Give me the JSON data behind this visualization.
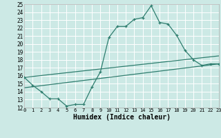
{
  "xlabel": "Humidex (Indice chaleur)",
  "background_color": "#cce9e5",
  "grid_color": "#ffffff",
  "line_color": "#2e7d6e",
  "xlim": [
    0,
    23
  ],
  "ylim": [
    12,
    25
  ],
  "xticks": [
    0,
    1,
    2,
    3,
    4,
    5,
    6,
    7,
    8,
    9,
    10,
    11,
    12,
    13,
    14,
    15,
    16,
    17,
    18,
    19,
    20,
    21,
    22,
    23
  ],
  "yticks": [
    12,
    13,
    14,
    15,
    16,
    17,
    18,
    19,
    20,
    21,
    22,
    23,
    24,
    25
  ],
  "series_main": {
    "x": [
      0,
      1,
      2,
      3,
      4,
      5,
      6,
      7,
      8,
      9,
      10,
      11,
      12,
      13,
      14,
      15,
      16,
      17,
      18,
      19,
      20,
      21,
      22,
      23
    ],
    "y": [
      15.8,
      14.8,
      14.0,
      13.1,
      13.1,
      12.2,
      12.4,
      12.4,
      14.6,
      16.5,
      20.8,
      22.2,
      22.2,
      23.1,
      23.3,
      24.8,
      22.7,
      22.5,
      21.1,
      19.2,
      18.0,
      17.3,
      17.5,
      17.5
    ]
  },
  "series_line1": {
    "x": [
      0,
      23
    ],
    "y": [
      14.5,
      17.5
    ]
  },
  "series_line2": {
    "x": [
      0,
      23
    ],
    "y": [
      15.8,
      18.5
    ]
  }
}
